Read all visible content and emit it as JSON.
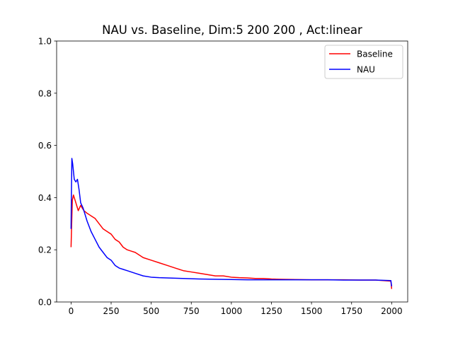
{
  "chart_data": {
    "type": "line",
    "title": "NAU vs. Baseline, Dim:5 200 200 , Act:linear",
    "xlabel": "",
    "ylabel": "",
    "xlim": [
      -90,
      2100
    ],
    "ylim": [
      0,
      1.0
    ],
    "xticks": [
      0,
      250,
      500,
      750,
      1000,
      1250,
      1500,
      1750,
      2000
    ],
    "xtick_labels": [
      "0",
      "250",
      "500",
      "750",
      "1000",
      "1250",
      "1500",
      "1750",
      "2000"
    ],
    "yticks": [
      0,
      0.2,
      0.4,
      0.6,
      0.8,
      1.0
    ],
    "ytick_labels": [
      "0.0",
      "0.2",
      "0.4",
      "0.6",
      "0.8",
      "1.0"
    ],
    "grid": false,
    "legend_position": "top-right",
    "series": [
      {
        "name": "Baseline",
        "color": "#ff0000",
        "x": [
          0,
          3,
          8,
          15,
          25,
          35,
          45,
          60,
          80,
          100,
          125,
          150,
          175,
          200,
          225,
          250,
          275,
          300,
          325,
          350,
          375,
          400,
          450,
          500,
          550,
          600,
          650,
          700,
          750,
          800,
          850,
          900,
          950,
          1000,
          1050,
          1100,
          1150,
          1200,
          1250,
          1300,
          1400,
          1500,
          1600,
          1700,
          1800,
          1900,
          1995,
          2000
        ],
        "y": [
          0.21,
          0.28,
          0.39,
          0.41,
          0.39,
          0.37,
          0.35,
          0.37,
          0.35,
          0.34,
          0.33,
          0.32,
          0.3,
          0.28,
          0.27,
          0.26,
          0.24,
          0.23,
          0.21,
          0.2,
          0.195,
          0.19,
          0.17,
          0.16,
          0.15,
          0.14,
          0.13,
          0.12,
          0.115,
          0.11,
          0.105,
          0.1,
          0.1,
          0.095,
          0.093,
          0.092,
          0.09,
          0.09,
          0.088,
          0.087,
          0.086,
          0.085,
          0.085,
          0.085,
          0.084,
          0.084,
          0.08,
          0.05
        ]
      },
      {
        "name": "NAU",
        "color": "#0000ff",
        "x": [
          0,
          2,
          5,
          10,
          15,
          20,
          30,
          40,
          50,
          60,
          75,
          90,
          100,
          125,
          150,
          175,
          200,
          225,
          250,
          275,
          300,
          325,
          350,
          400,
          450,
          500,
          550,
          600,
          700,
          800,
          900,
          1000,
          1100,
          1200,
          1300,
          1400,
          1500,
          1600,
          1700,
          1800,
          1900,
          1995,
          2000
        ],
        "y": [
          0.28,
          0.4,
          0.55,
          0.53,
          0.5,
          0.47,
          0.46,
          0.47,
          0.43,
          0.38,
          0.36,
          0.33,
          0.31,
          0.27,
          0.24,
          0.21,
          0.19,
          0.17,
          0.16,
          0.14,
          0.13,
          0.125,
          0.12,
          0.11,
          0.1,
          0.095,
          0.093,
          0.092,
          0.09,
          0.088,
          0.087,
          0.086,
          0.085,
          0.085,
          0.085,
          0.085,
          0.085,
          0.085,
          0.084,
          0.084,
          0.084,
          0.082,
          0.06
        ]
      }
    ]
  }
}
